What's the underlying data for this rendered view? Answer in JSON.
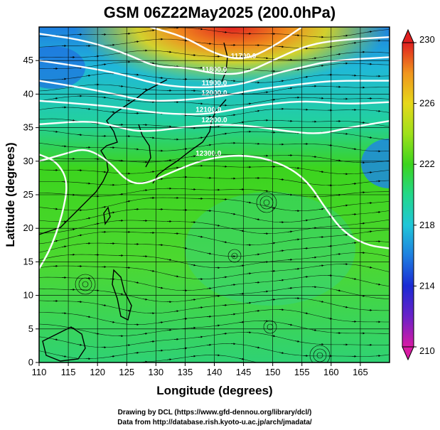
{
  "title": "GSM 06Z22May2025 (200.0hPa)",
  "xlabel": "Longitude (degrees)",
  "ylabel": "Latitude (degrees)",
  "credits": [
    "Drawing by DCL (https://www.gfd-dennou.org/library/dcl/)",
    "Data from http://database.rish.kyoto-u.ac.jp/arch/jmadata/"
  ],
  "chart_data": {
    "type": "heatmap",
    "title": "GSM 06Z22May2025 (200.0hPa)",
    "xlabel": "Longitude (degrees)",
    "ylabel": "Latitude (degrees)",
    "xlim": [
      110,
      170
    ],
    "ylim": [
      0,
      50
    ],
    "xticks": [
      110,
      115,
      120,
      125,
      130,
      135,
      140,
      145,
      150,
      155,
      160,
      165
    ],
    "yticks": [
      0,
      5,
      10,
      15,
      20,
      25,
      30,
      35,
      40,
      45
    ],
    "colorbar": {
      "min": 210,
      "max": 230,
      "ticks": [
        210,
        214,
        218,
        222,
        226,
        230
      ],
      "colors": [
        "#d81ba4",
        "#6a22c8",
        "#1b2ad4",
        "#1e7fe0",
        "#20c6d8",
        "#22d88a",
        "#3cd41e",
        "#9ee01a",
        "#e6d81a",
        "#f0951e",
        "#e02020"
      ]
    },
    "contour_labels": [
      "11700.0",
      "11800.0",
      "11900.0",
      "12000.0",
      "12100.0",
      "12200.0",
      "12300.0"
    ],
    "contours": [
      {
        "label": "11700.0",
        "points": [
          [
            129,
            50
          ],
          [
            135,
            48.5
          ],
          [
            140,
            46
          ],
          [
            145,
            45
          ],
          [
            150,
            47
          ],
          [
            155,
            50
          ]
        ]
      },
      {
        "label": "11800.0",
        "points": [
          [
            110,
            49
          ],
          [
            118,
            48
          ],
          [
            125,
            46
          ],
          [
            130,
            44
          ],
          [
            135,
            44
          ],
          [
            140,
            43
          ],
          [
            145,
            43
          ],
          [
            150,
            45
          ],
          [
            155,
            47
          ],
          [
            160,
            48
          ],
          [
            170,
            48.5
          ]
        ]
      },
      {
        "label": "11900.0",
        "points": [
          [
            110,
            45
          ],
          [
            118,
            44
          ],
          [
            124,
            43
          ],
          [
            130,
            41.5
          ],
          [
            135,
            41
          ],
          [
            140,
            41
          ],
          [
            145,
            41.5
          ],
          [
            150,
            43
          ],
          [
            155,
            44
          ],
          [
            160,
            45
          ],
          [
            170,
            45.5
          ]
        ]
      },
      {
        "label": "12000.0",
        "points": [
          [
            110,
            42
          ],
          [
            117,
            41
          ],
          [
            123,
            40
          ],
          [
            128,
            39
          ],
          [
            133,
            39
          ],
          [
            140,
            39.5
          ],
          [
            146,
            40.5
          ],
          [
            150,
            41
          ],
          [
            155,
            41.5
          ],
          [
            160,
            42
          ],
          [
            170,
            42
          ]
        ]
      },
      {
        "label": "12100.0",
        "points": [
          [
            110,
            39
          ],
          [
            118,
            38.5
          ],
          [
            124,
            38
          ],
          [
            129,
            37.3
          ],
          [
            134,
            37
          ],
          [
            139,
            37
          ],
          [
            145,
            38
          ],
          [
            150,
            38.6
          ],
          [
            156,
            39
          ],
          [
            162,
            38.5
          ],
          [
            170,
            38.8
          ]
        ]
      },
      {
        "label": "12200.0",
        "points": [
          [
            110,
            35.5
          ],
          [
            118,
            36
          ],
          [
            122,
            35.5
          ],
          [
            126,
            34.5
          ],
          [
            130,
            34.5
          ],
          [
            134,
            35
          ],
          [
            140,
            35.5
          ],
          [
            146,
            35.3
          ],
          [
            152,
            34.5
          ],
          [
            158,
            34
          ],
          [
            163,
            35
          ],
          [
            170,
            36
          ]
        ]
      },
      {
        "label": "12300.0",
        "points": [
          [
            110,
            30
          ],
          [
            114,
            31
          ],
          [
            118,
            32
          ],
          [
            122,
            30
          ],
          [
            125,
            27
          ],
          [
            128,
            26.5
          ],
          [
            133,
            28.5
          ],
          [
            139,
            30.5
          ],
          [
            146,
            31
          ],
          [
            152,
            29.5
          ],
          [
            156,
            27
          ],
          [
            159,
            23
          ],
          [
            162,
            19.5
          ],
          [
            166,
            17.5
          ],
          [
            170,
            17
          ]
        ]
      },
      {
        "label": "",
        "points": [
          [
            110,
            14
          ],
          [
            112,
            17
          ],
          [
            114,
            22
          ],
          [
            115,
            27
          ],
          [
            113,
            30
          ],
          [
            110,
            31
          ]
        ]
      }
    ]
  }
}
